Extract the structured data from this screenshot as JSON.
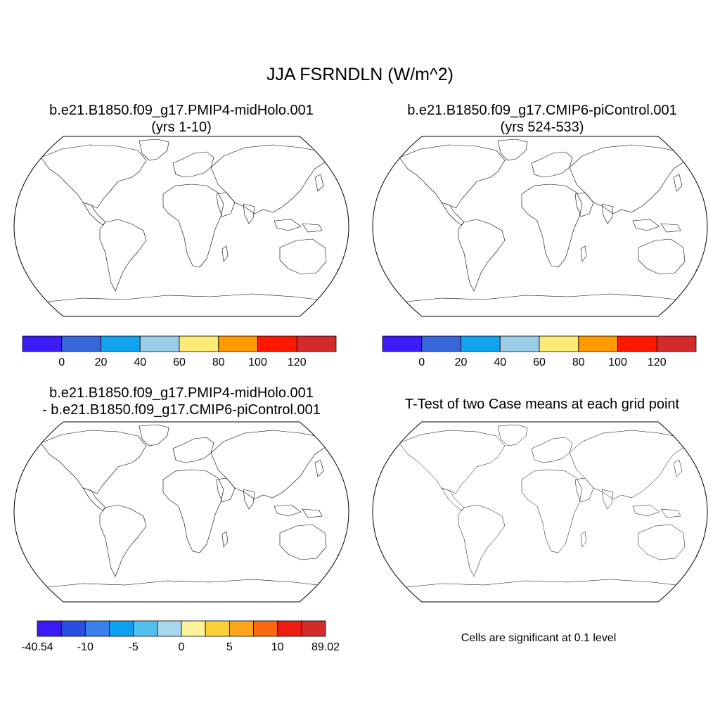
{
  "figure": {
    "title": "JJA FSRNDLN (W/m^2)",
    "note": "Cells are significant at 0.1 level"
  },
  "panels": [
    {
      "title_line1": "b.e21.B1850.f09_g17.PMIP4-midHolo.001",
      "title_line2": "(yrs 1-10)"
    },
    {
      "title_line1": "b.e21.B1850.f09_g17.CMIP6-piControl.001",
      "title_line2": "(yrs 524-533)"
    },
    {
      "title_line1": "b.e21.B1850.f09_g17.PMIP4-midHolo.001",
      "title_line2": "- b.e21.B1850.f09_g17.CMIP6-piControl.001"
    },
    {
      "title_line1": "T-Test of two Case means at each grid point",
      "title_line2": ""
    }
  ],
  "colorbar_abs": {
    "colors": [
      "#3c1cf5",
      "#3a66dc",
      "#12a3f0",
      "#9ccde8",
      "#fbea76",
      "#fd9a00",
      "#fb1a00",
      "#d32a2a"
    ],
    "labels": [
      "0",
      "20",
      "40",
      "60",
      "80",
      "100",
      "120"
    ]
  },
  "colorbar_diff": {
    "colors": [
      "#3c1cf5",
      "#2a4fe0",
      "#3a80ec",
      "#0ea0f0",
      "#52c0ee",
      "#a8d6ec",
      "#fbf39c",
      "#fcd037",
      "#fba41c",
      "#f96a10",
      "#ec1c12",
      "#d32a2a"
    ],
    "labels": [
      "-40.54",
      "-10",
      "-5",
      "0",
      "5",
      "10",
      "89.02"
    ]
  },
  "significance_color": "#ff0000"
}
